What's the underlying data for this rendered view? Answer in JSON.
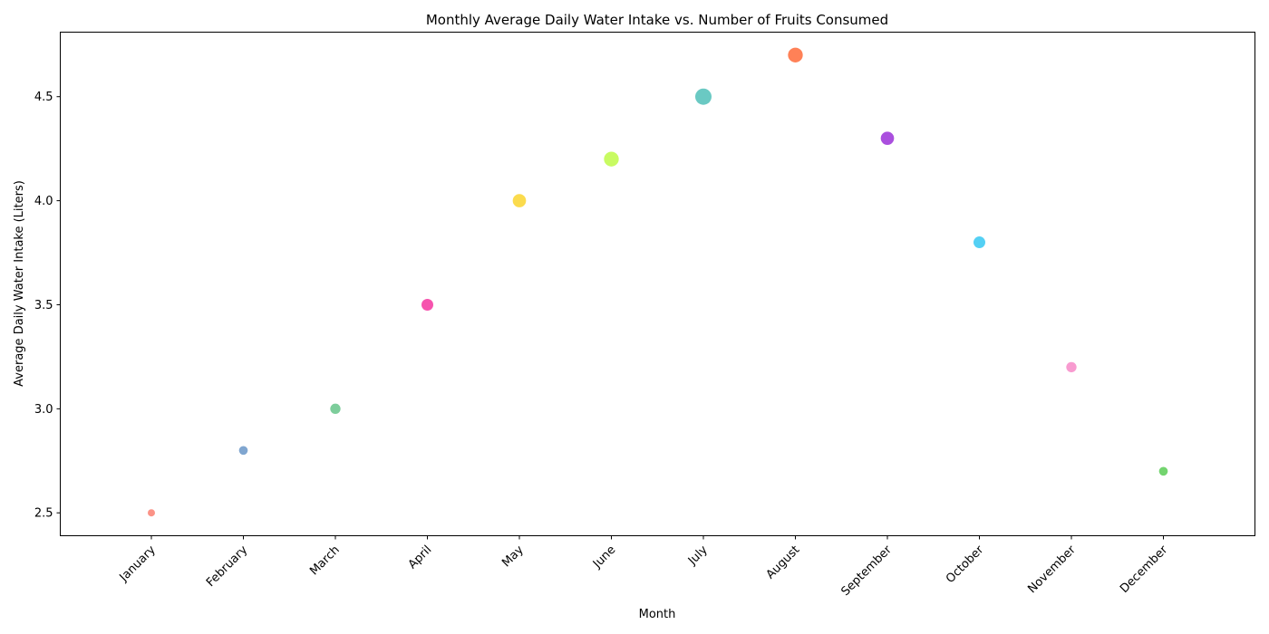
{
  "chart_data": {
    "type": "scatter",
    "title": "Monthly Average Daily Water Intake vs. Number of Fruits Consumed",
    "xlabel": "Month",
    "ylabel": "Average Daily Water Intake (Liters)",
    "categories": [
      "January",
      "February",
      "March",
      "April",
      "May",
      "June",
      "July",
      "August",
      "September",
      "October",
      "November",
      "December"
    ],
    "values": [
      2.5,
      2.8,
      3.0,
      3.5,
      4.0,
      4.2,
      4.5,
      4.7,
      4.3,
      3.8,
      3.2,
      2.7
    ],
    "sizes": [
      2,
      3,
      4,
      5,
      6,
      7,
      8,
      7,
      6,
      5,
      4,
      3
    ],
    "colors": [
      "#FA8072",
      "#6A96C8",
      "#66C48A",
      "#F535A0",
      "#FAD52E",
      "#BEFA46",
      "#50BFB8",
      "#FF6B3A",
      "#9B30D8",
      "#36C8F2",
      "#F78AC8",
      "#5ACC56"
    ],
    "ylim": [
      2.39,
      4.81
    ],
    "yticks": [
      "2.5",
      "3.0",
      "3.5",
      "4.0",
      "4.5"
    ],
    "grid": false,
    "legend": "none"
  }
}
